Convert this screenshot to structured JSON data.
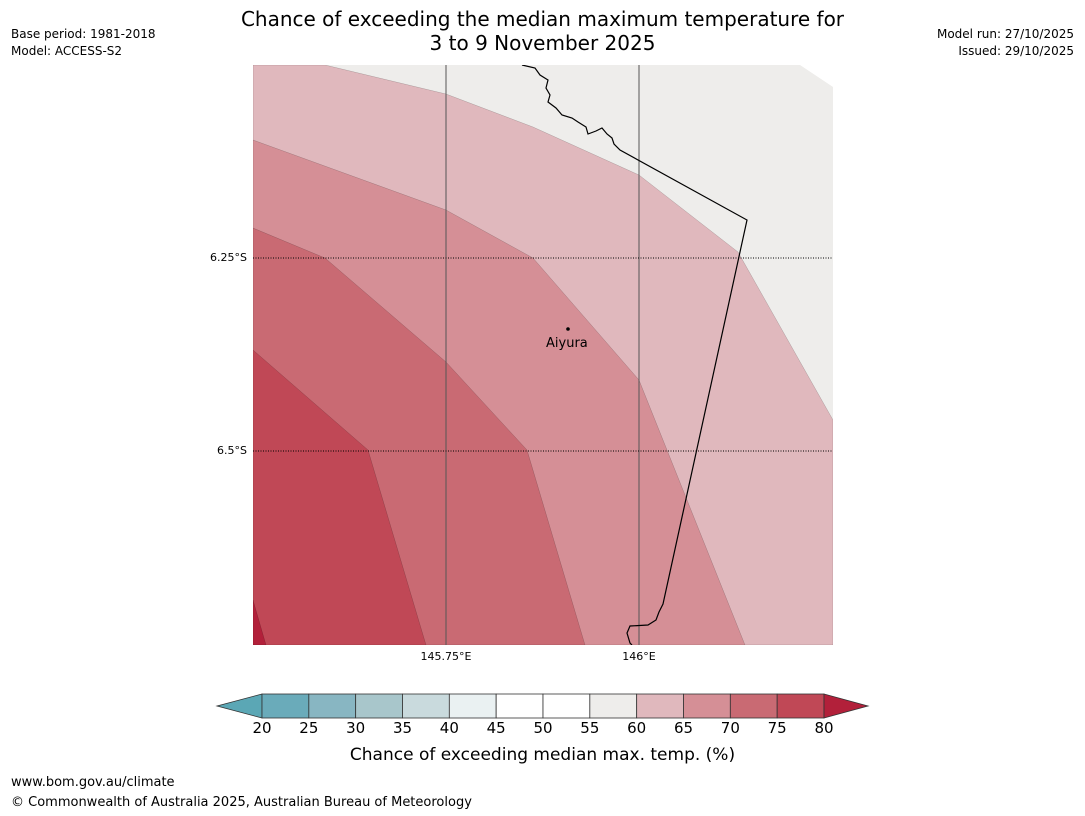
{
  "title": {
    "line1": "Chance of exceeding the median maximum temperature for",
    "line2": "3 to 9 November 2025"
  },
  "meta_left": {
    "base_period": "Base period: 1981-2018",
    "model": "Model: ACCESS-S2"
  },
  "meta_right": {
    "model_run": "Model run: 27/10/2025",
    "issued": "Issued: 29/10/2025"
  },
  "map": {
    "lat_labels": [
      "6.25°S",
      "6.5°S"
    ],
    "lon_labels": [
      "145.75°E",
      "146°E"
    ],
    "city": {
      "name": "Aiyura"
    },
    "colors": {
      "55-60": "#eeedeb",
      "60-65": "#e0b8bd",
      "65-70": "#d58f96",
      "70-75": "#c96a73",
      "75-80": "#c04856",
      ">80": "#b2203a",
      "land_outline": "#000000"
    }
  },
  "colorbar": {
    "ticks": [
      "20",
      "25",
      "30",
      "35",
      "40",
      "45",
      "50",
      "55",
      "60",
      "65",
      "70",
      "75",
      "80"
    ],
    "colors": [
      "#5ba7b5",
      "#6aabba",
      "#88b6c2",
      "#a8c6cb",
      "#c9dadd",
      "#eaf1f2",
      "#ffffff",
      "#ffffff",
      "#eeedeb",
      "#e0b8bd",
      "#d58f96",
      "#c96a73",
      "#c04856",
      "#b2203a"
    ],
    "label": "Chance of exceeding median max. temp. (%)"
  },
  "footer": {
    "url": "www.bom.gov.au/climate",
    "copyright": "© Commonwealth of Australia 2025, Australian Bureau of Meteorology"
  }
}
